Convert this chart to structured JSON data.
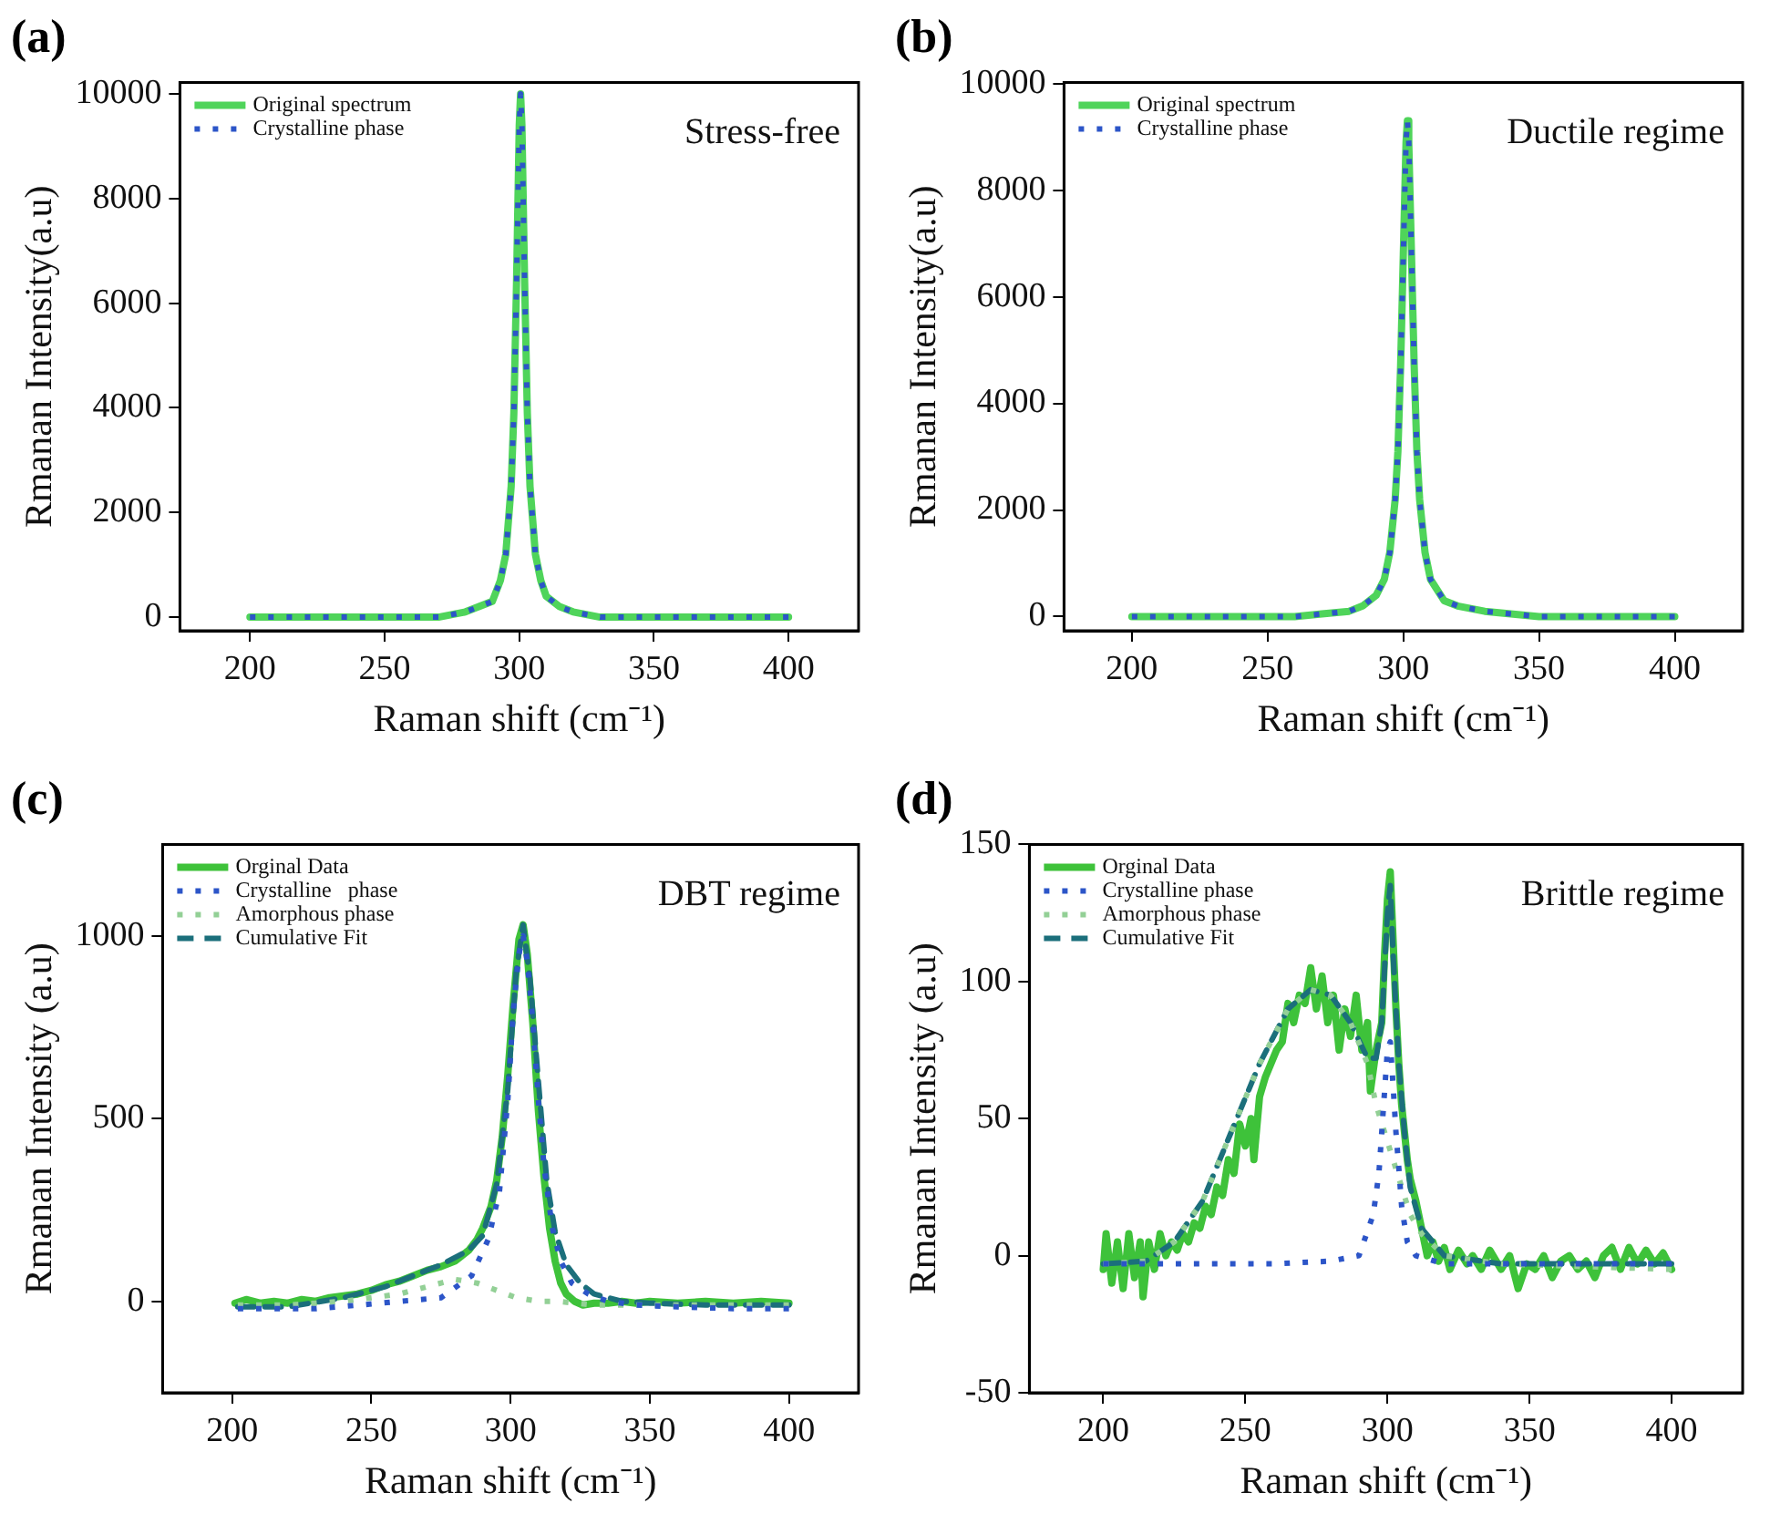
{
  "chart_data": [
    {
      "type": "line",
      "title": "(a)",
      "xlabel": "Raman shift (cm⁻¹)",
      "ylabel": "Rmanan Intensity(a.u)",
      "xlim": [
        174,
        426
      ],
      "xticks": [
        200,
        250,
        300,
        350,
        400
      ],
      "ylim": [
        -260,
        10220
      ],
      "yticks": [
        0,
        2000,
        4000,
        6000,
        8000,
        10000
      ],
      "grid": false,
      "legend": "top left",
      "annotations": [
        "Stress-free"
      ],
      "series": [
        {
          "name": "Original spectrum",
          "color": "#4fd45a",
          "line_style": "solid",
          "x": [
            200,
            220,
            240,
            260,
            270,
            280,
            285,
            290,
            293,
            295,
            297,
            298,
            299,
            300,
            300.5,
            301,
            302,
            303,
            304,
            306,
            308,
            310,
            315,
            320,
            330,
            340,
            360,
            380,
            400
          ],
          "values": [
            0,
            0,
            0,
            0,
            0,
            100,
            200,
            300,
            700,
            1200,
            2500,
            3900,
            6400,
            9400,
            10000,
            9400,
            6400,
            3900,
            2500,
            1200,
            700,
            400,
            200,
            100,
            0,
            0,
            0,
            0,
            0
          ]
        },
        {
          "name": "Crystalline phase",
          "color": "#2c55c8",
          "line_style": "dotted",
          "x": [
            200,
            220,
            240,
            260,
            270,
            280,
            285,
            290,
            293,
            295,
            297,
            298,
            299,
            300,
            300.5,
            301,
            302,
            303,
            304,
            306,
            308,
            310,
            315,
            320,
            330,
            340,
            360,
            380,
            400
          ],
          "values": [
            0,
            0,
            0,
            0,
            0,
            100,
            200,
            300,
            700,
            1200,
            2500,
            3900,
            6400,
            9400,
            10000,
            9400,
            6400,
            3900,
            2500,
            1200,
            700,
            400,
            200,
            100,
            0,
            0,
            0,
            0,
            0
          ]
        }
      ]
    },
    {
      "type": "line",
      "title": "(b)",
      "xlabel": "Raman shift (cm⁻¹)",
      "ylabel": "Rmanan Intensity(a.u)",
      "xlim": [
        175,
        425
      ],
      "xticks": [
        200,
        250,
        300,
        350,
        400
      ],
      "ylim": [
        -265,
        10020
      ],
      "yticks": [
        0,
        2000,
        4000,
        6000,
        8000,
        10000
      ],
      "grid": false,
      "legend": "top left",
      "annotations": [
        "Ductile regime"
      ],
      "series": [
        {
          "name": "Original spectrum",
          "color": "#4fd45a",
          "line_style": "solid",
          "x": [
            200,
            240,
            260,
            270,
            280,
            285,
            290,
            293,
            295,
            297,
            298,
            299,
            300,
            301,
            301.5,
            302,
            303,
            304,
            305,
            306,
            308,
            310,
            315,
            320,
            330,
            350,
            380,
            400
          ],
          "values": [
            0,
            0,
            0,
            50,
            100,
            200,
            400,
            700,
            1200,
            2200,
            3100,
            4700,
            6800,
            8900,
            9300,
            8900,
            6800,
            4700,
            3100,
            2200,
            1200,
            700,
            300,
            200,
            100,
            0,
            0,
            0
          ]
        },
        {
          "name": "Crystalline phase",
          "color": "#2c55c8",
          "line_style": "dotted",
          "x": [
            200,
            240,
            260,
            270,
            280,
            285,
            290,
            293,
            295,
            297,
            298,
            299,
            300,
            301,
            301.5,
            302,
            303,
            304,
            305,
            306,
            308,
            310,
            315,
            320,
            330,
            350,
            380,
            400
          ],
          "values": [
            0,
            0,
            0,
            50,
            100,
            200,
            400,
            700,
            1200,
            2200,
            3100,
            4700,
            6800,
            8900,
            9300,
            8900,
            6800,
            4700,
            3100,
            2200,
            1200,
            700,
            300,
            200,
            100,
            0,
            0,
            0
          ]
        }
      ]
    },
    {
      "type": "line",
      "title": "(c)",
      "xlabel": "Raman shift (cm⁻¹)",
      "ylabel": "Rmanan Intensity (a.u)",
      "xlim": [
        175,
        425
      ],
      "xticks": [
        200,
        250,
        300,
        350,
        400
      ],
      "ylim": [
        -250,
        1250
      ],
      "yticks": [
        0,
        500,
        1000
      ],
      "grid": false,
      "legend": "top left",
      "annotations": [
        "DBT regime"
      ],
      "series": [
        {
          "name": "Orginal Data",
          "color": "#3ec23a",
          "line_style": "solid",
          "x": [
            201,
            205,
            210,
            215,
            220,
            225,
            230,
            235,
            240,
            245,
            250,
            255,
            260,
            265,
            270,
            275,
            280,
            285,
            288,
            290,
            293,
            295,
            297,
            299,
            301,
            303,
            304.5,
            306,
            308,
            310,
            312,
            314,
            316,
            318,
            320,
            323,
            326,
            330,
            335,
            340,
            345,
            350,
            360,
            370,
            380,
            390,
            400
          ],
          "values": [
            -5,
            5,
            -5,
            0,
            -5,
            5,
            0,
            10,
            15,
            20,
            30,
            45,
            55,
            70,
            85,
            95,
            110,
            140,
            170,
            200,
            260,
            330,
            450,
            620,
            820,
            990,
            1030,
            950,
            760,
            520,
            340,
            200,
            110,
            50,
            20,
            0,
            -10,
            -5,
            -5,
            0,
            -5,
            0,
            -5,
            0,
            -5,
            0,
            -5
          ]
        },
        {
          "name": "Crystalline   phase",
          "color": "#2c55c8",
          "line_style": "dotted",
          "x": [
            202,
            215,
            230,
            246,
            260,
            275,
            286,
            292,
            296,
            299,
            301,
            303,
            304.5,
            306,
            308,
            310,
            312,
            315,
            318,
            322,
            328,
            335,
            345,
            360,
            380,
            400
          ],
          "values": [
            -20,
            -20,
            -20,
            -10,
            0,
            10,
            70,
            170,
            300,
            550,
            800,
            950,
            1000,
            930,
            760,
            550,
            370,
            200,
            110,
            50,
            20,
            0,
            -10,
            -15,
            -20,
            -20
          ]
        },
        {
          "name": "Amorphous phase",
          "color": "#93d096",
          "line_style": "dotted",
          "x": [
            202,
            220,
            240,
            260,
            270,
            280,
            288,
            295,
            302,
            310,
            317,
            330,
            360,
            400
          ],
          "values": [
            -10,
            -10,
            0,
            20,
            40,
            60,
            50,
            30,
            10,
            0,
            0,
            -10,
            -10,
            -10
          ]
        },
        {
          "name": "Cumulative Fit",
          "color": "#1b6f7b",
          "line_style": "dashed",
          "x": [
            202,
            220,
            240,
            255,
            265,
            275,
            285,
            290,
            295,
            299,
            302,
            304.5,
            307,
            310,
            313,
            316,
            320,
            325,
            330,
            340,
            350,
            370,
            400
          ],
          "values": [
            -15,
            -15,
            10,
            40,
            70,
            100,
            140,
            180,
            320,
            580,
            900,
            1030,
            880,
            600,
            330,
            190,
            100,
            50,
            20,
            0,
            -5,
            -10,
            -10
          ]
        }
      ]
    },
    {
      "type": "line",
      "title": "(d)",
      "xlabel": "Raman shift (cm⁻¹)",
      "ylabel": "Rmanan Intensity (a.u)",
      "xlim": [
        174,
        425
      ],
      "xticks": [
        200,
        250,
        300,
        350,
        400
      ],
      "ylim": [
        -50,
        150
      ],
      "yticks": [
        -50,
        0,
        50,
        100,
        150
      ],
      "grid": false,
      "legend": "top left",
      "annotations": [
        "Brittle regime"
      ],
      "series": [
        {
          "name": "Orginal Data",
          "color": "#3ec23a",
          "line_style": "solid",
          "x": [
            200,
            201,
            203,
            205,
            207,
            209,
            211,
            213,
            214,
            216,
            218,
            220,
            222,
            224,
            226,
            228,
            230,
            232,
            234,
            236,
            238,
            240,
            242,
            244,
            246,
            248,
            250,
            252,
            253,
            255,
            257,
            259,
            261,
            263,
            265,
            267,
            269,
            271,
            273,
            275,
            277,
            279,
            281,
            283,
            285,
            287,
            289,
            291,
            293,
            294,
            296,
            298,
            299,
            300,
            301,
            302,
            303,
            304,
            305,
            306,
            307,
            308,
            310,
            312,
            314,
            316,
            318,
            320,
            322,
            325,
            328,
            330,
            333,
            336,
            340,
            343,
            346,
            349,
            352,
            355,
            358,
            361,
            364,
            367,
            370,
            373,
            376,
            379,
            382,
            385,
            388,
            391,
            394,
            397,
            400
          ],
          "values": [
            -5,
            8,
            -10,
            5,
            -12,
            8,
            -8,
            5,
            -15,
            5,
            -5,
            8,
            0,
            5,
            2,
            8,
            5,
            12,
            10,
            18,
            15,
            25,
            22,
            35,
            30,
            48,
            40,
            50,
            35,
            58,
            65,
            70,
            75,
            78,
            92,
            85,
            95,
            92,
            105,
            90,
            102,
            85,
            95,
            75,
            90,
            80,
            95,
            75,
            85,
            60,
            75,
            85,
            110,
            130,
            140,
            115,
            90,
            70,
            55,
            45,
            35,
            28,
            20,
            10,
            0,
            5,
            -2,
            3,
            -5,
            2,
            -3,
            0,
            -5,
            2,
            -5,
            0,
            -12,
            -3,
            -5,
            0,
            -8,
            -2,
            0,
            -5,
            -2,
            -8,
            0,
            3,
            -5,
            3,
            -3,
            2,
            -3,
            1,
            -5
          ]
        },
        {
          "name": "Crystalline phase",
          "color": "#2c55c8",
          "line_style": "dotted",
          "x": [
            200,
            230,
            260,
            280,
            290,
            295,
            297,
            298,
            299,
            300,
            301,
            302,
            303,
            304,
            305,
            307,
            310,
            320,
            400
          ],
          "values": [
            -3,
            -3,
            -3,
            -2,
            0,
            15,
            30,
            45,
            60,
            75,
            78,
            62,
            45,
            32,
            18,
            5,
            0,
            -3,
            -3
          ]
        },
        {
          "name": "Amorphous phase",
          "color": "#93d096",
          "line_style": "dotted",
          "x": [
            200,
            215,
            225,
            235,
            245,
            255,
            265,
            273,
            280,
            287,
            293,
            296,
            299,
            302,
            305,
            308,
            312,
            320,
            340,
            400
          ],
          "values": [
            -3,
            -2,
            5,
            20,
            45,
            70,
            90,
            97,
            95,
            85,
            70,
            55,
            45,
            35,
            25,
            15,
            8,
            0,
            -3,
            -5
          ]
        },
        {
          "name": "Cumulative Fit",
          "color": "#1b6f7b",
          "line_style": "dashed",
          "x": [
            200,
            215,
            225,
            235,
            245,
            255,
            265,
            273,
            280,
            287,
            293,
            296,
            298,
            300,
            301,
            302,
            304,
            306,
            308,
            312,
            320,
            340,
            400
          ],
          "values": [
            -3,
            -2,
            5,
            20,
            45,
            70,
            90,
            97,
            95,
            85,
            72,
            72,
            85,
            125,
            135,
            110,
            70,
            45,
            25,
            10,
            0,
            -3,
            -3
          ]
        }
      ]
    }
  ]
}
